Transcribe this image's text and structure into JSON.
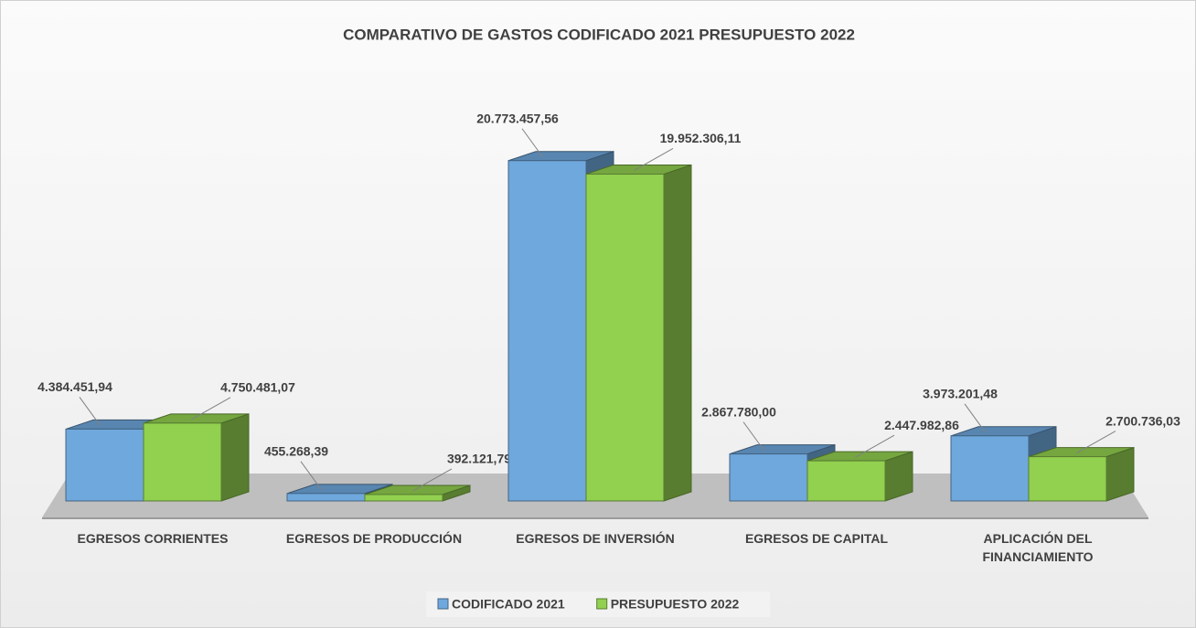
{
  "chart_data": {
    "type": "bar3d",
    "title": "COMPARATIVO DE GASTOS CODIFICADO 2021 PRESUPUESTO 2022",
    "categories": [
      "EGRESOS CORRIENTES",
      "EGRESOS DE PRODUCCIÓN",
      "EGRESOS DE INVERSIÓN",
      "EGRESOS DE CAPITAL",
      "APLICACIÓN DEL FINANCIAMIENTO"
    ],
    "series": [
      {
        "name": "CODIFICADO 2021",
        "color": "#6fa8dc",
        "values": [
          4384451.94,
          455268.39,
          20773457.56,
          2867780.0,
          3973201.48
        ],
        "value_labels": [
          "4.384.451,94",
          "455.268,39",
          "20.773.457,56",
          "2.867.780,00",
          "3.973.201,48"
        ]
      },
      {
        "name": "PRESUPUESTO 2022",
        "color": "#92d050",
        "values": [
          4750481.07,
          392121.79,
          19952306.11,
          2447982.86,
          2700736.03
        ],
        "value_labels": [
          "4.750.481,07",
          "392.121,79",
          "19.952.306,11",
          "2.447.982,86",
          "2.700.736,03"
        ]
      }
    ],
    "ylim": [
      0,
      25000000
    ],
    "legend": "bottom"
  }
}
